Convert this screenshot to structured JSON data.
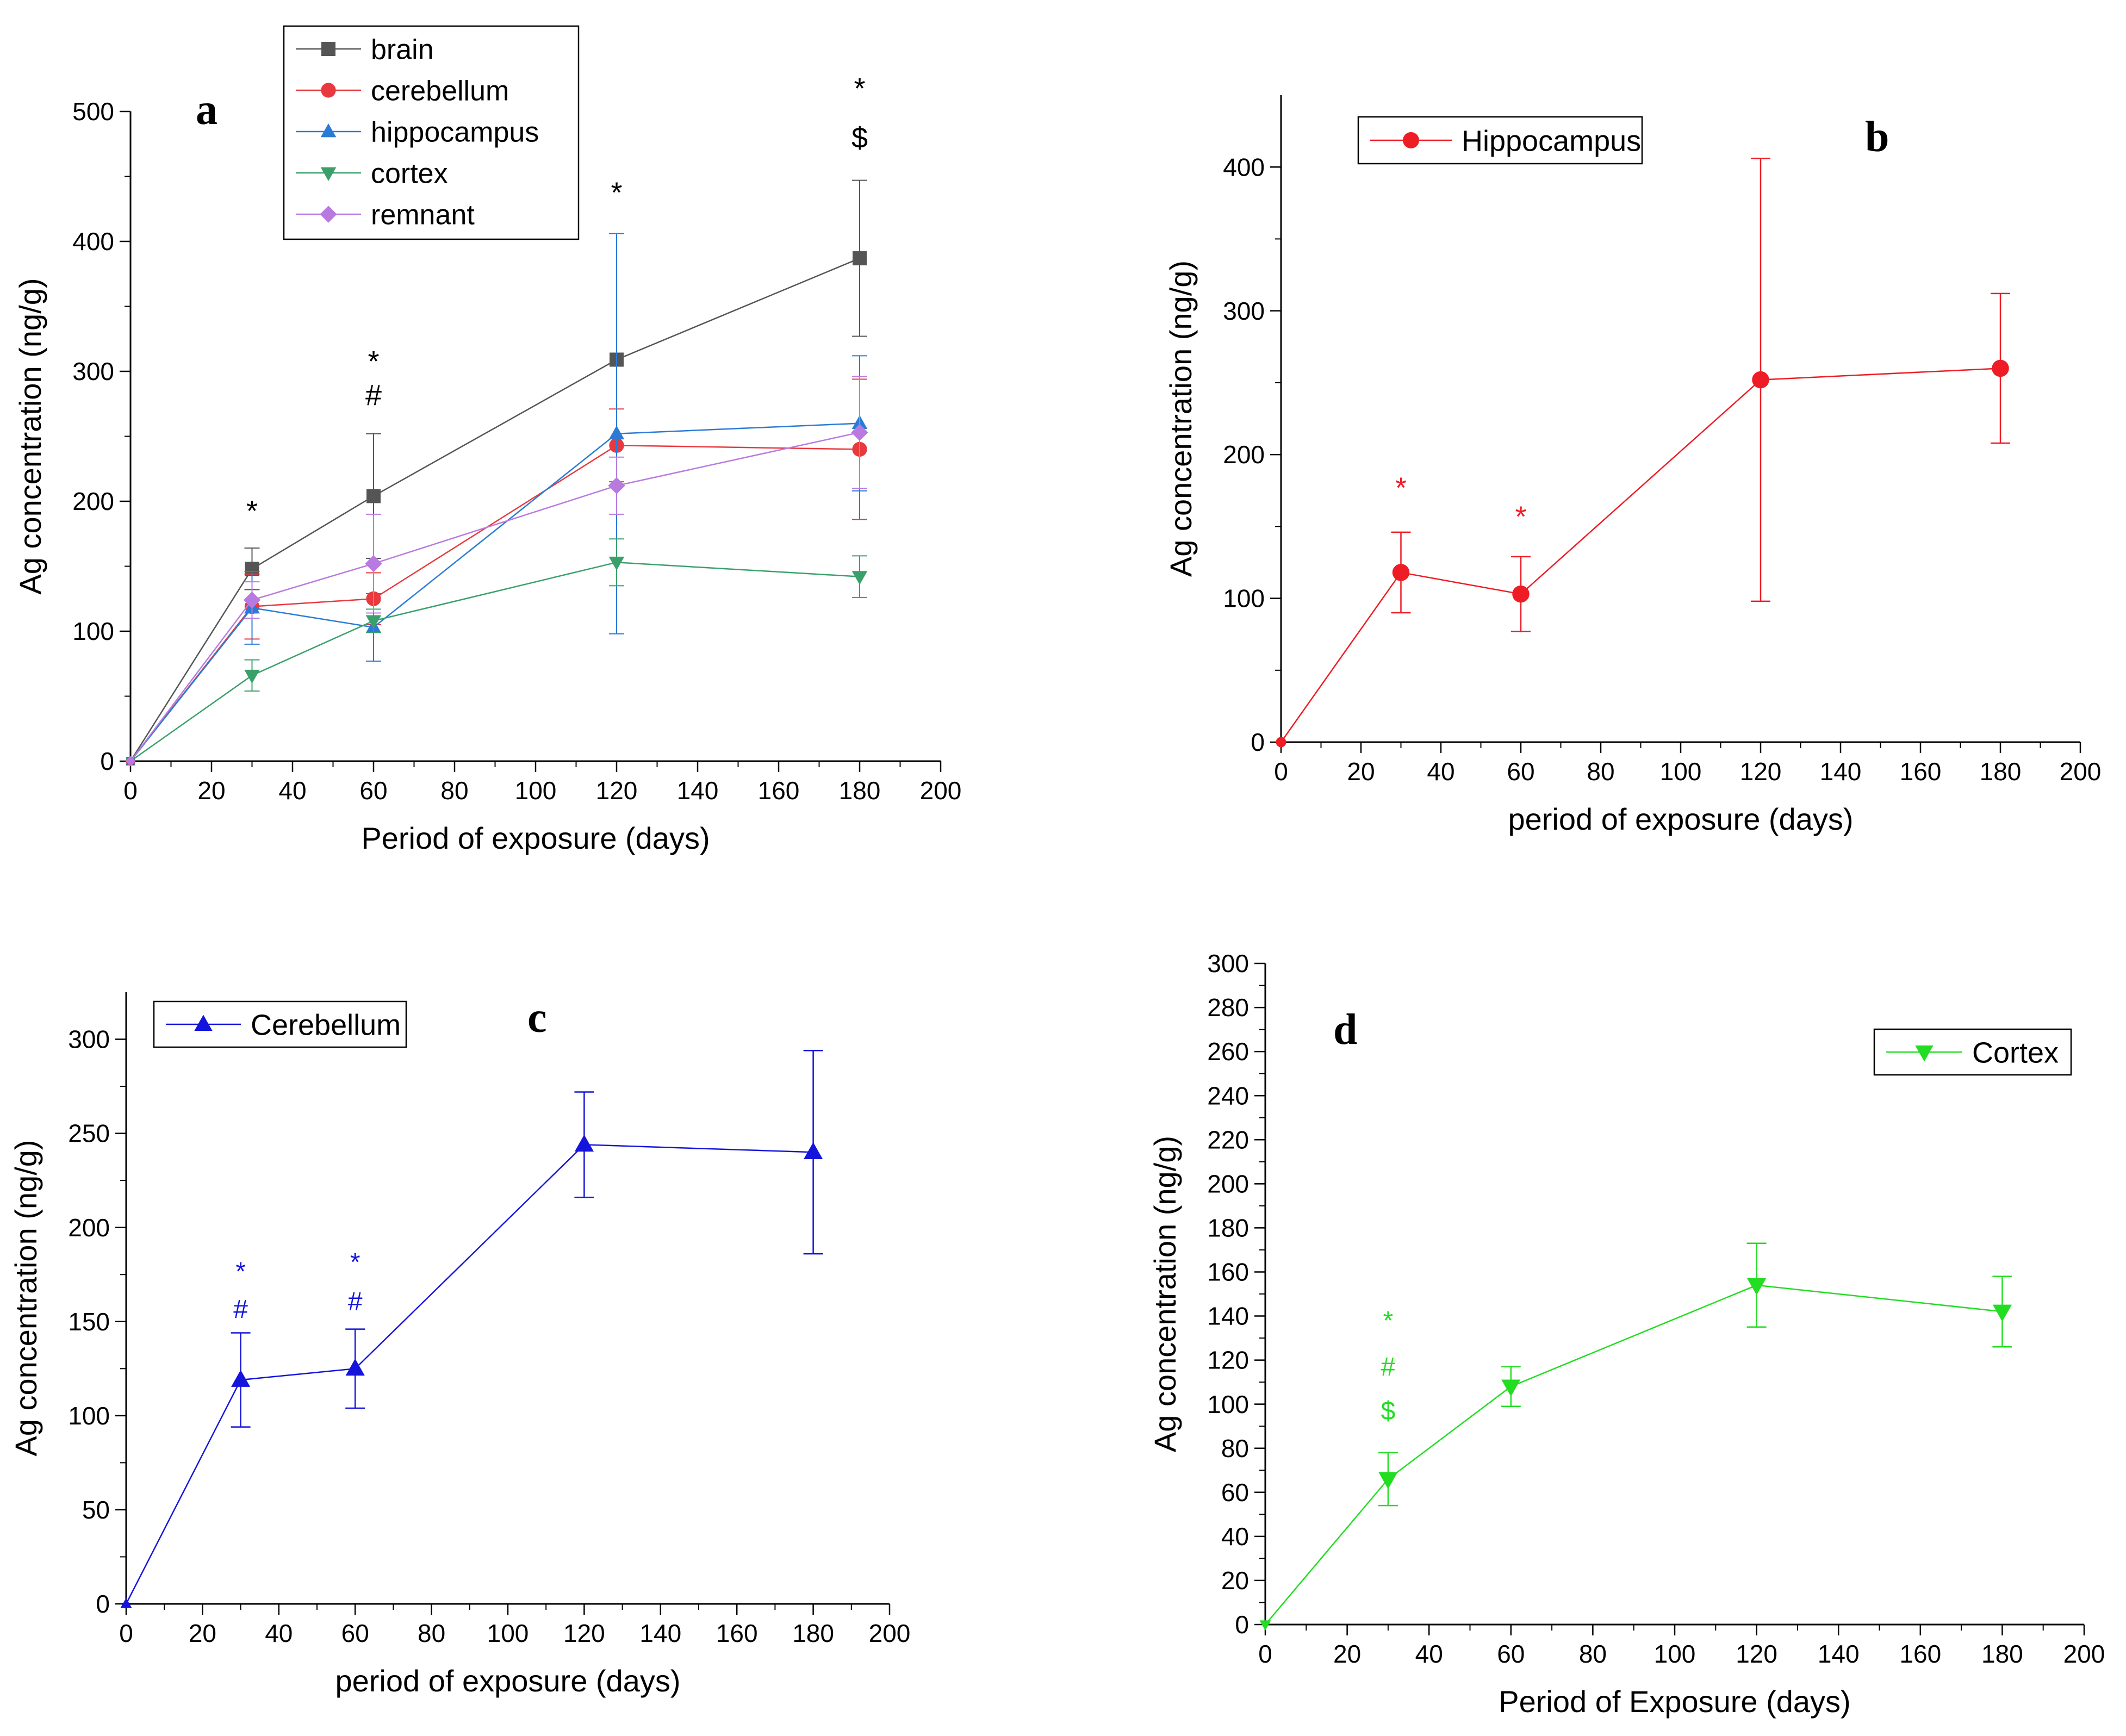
{
  "figure": {
    "panels": [
      "a",
      "b",
      "c",
      "d"
    ]
  },
  "chart_data": [
    {
      "id": "a",
      "type": "line",
      "panel_label": "a",
      "xlabel": "Period of exposure (days)",
      "ylabel": "Ag concentration (ng/g)",
      "xlim": [
        0,
        200
      ],
      "ylim": [
        0,
        500
      ],
      "xticks": [
        0,
        20,
        40,
        60,
        80,
        100,
        120,
        140,
        160,
        180,
        200
      ],
      "yticks": [
        0,
        100,
        200,
        300,
        400,
        500
      ],
      "legend_position": "top-center",
      "x": [
        0,
        30,
        60,
        120,
        180
      ],
      "series": [
        {
          "name": "brain",
          "color": "#555555",
          "marker": "square",
          "values": [
            0,
            148,
            204,
            309,
            387
          ],
          "errors": [
            0,
            16,
            48,
            0,
            60
          ]
        },
        {
          "name": "cerebellum",
          "color": "#e8393f",
          "marker": "circle",
          "values": [
            0,
            119,
            125,
            243,
            240
          ],
          "errors": [
            0,
            25,
            20,
            28,
            54
          ]
        },
        {
          "name": "hippocampus",
          "color": "#2b7bd6",
          "marker": "triangle-up",
          "values": [
            0,
            118,
            103,
            252,
            260
          ],
          "errors": [
            0,
            28,
            26,
            154,
            52
          ]
        },
        {
          "name": "cortex",
          "color": "#3aa06a",
          "marker": "triangle-down",
          "values": [
            0,
            66,
            108,
            153,
            142
          ],
          "errors": [
            0,
            12,
            9,
            18,
            16
          ]
        },
        {
          "name": "remnant",
          "color": "#b87ae0",
          "marker": "diamond",
          "values": [
            0,
            124,
            152,
            212,
            253
          ],
          "errors": [
            0,
            14,
            38,
            22,
            43
          ]
        }
      ],
      "annotations": [
        {
          "x": 30,
          "y": 185,
          "text": "*",
          "color": "#000000"
        },
        {
          "x": 60,
          "y": 300,
          "text": "*",
          "color": "#000000"
        },
        {
          "x": 60,
          "y": 274,
          "text": "#",
          "color": "#000000"
        },
        {
          "x": 120,
          "y": 430,
          "text": "*",
          "color": "#000000"
        },
        {
          "x": 180,
          "y": 510,
          "text": "*",
          "color": "#000000"
        },
        {
          "x": 180,
          "y": 472,
          "text": "$",
          "color": "#000000"
        }
      ]
    },
    {
      "id": "b",
      "type": "line",
      "panel_label": "b",
      "xlabel": "period of exposure (days)",
      "ylabel": "Ag concentration (ng/g)",
      "xlim": [
        0,
        200
      ],
      "ylim": [
        0,
        450
      ],
      "xticks": [
        0,
        20,
        40,
        60,
        80,
        100,
        120,
        140,
        160,
        180,
        200
      ],
      "yticks": [
        0,
        100,
        200,
        300,
        400
      ],
      "legend_position": "top-left",
      "x": [
        0,
        30,
        60,
        120,
        180
      ],
      "series": [
        {
          "name": "Hippocampus",
          "color": "#ee1c24",
          "marker": "circle",
          "values": [
            0,
            118,
            103,
            252,
            260
          ],
          "errors": [
            0,
            28,
            26,
            154,
            52
          ]
        }
      ],
      "annotations": [
        {
          "x": 30,
          "y": 170,
          "text": "*",
          "color": "#ee1c24"
        },
        {
          "x": 60,
          "y": 150,
          "text": "*",
          "color": "#ee1c24"
        }
      ]
    },
    {
      "id": "c",
      "type": "line",
      "panel_label": "c",
      "xlabel": "period of exposure (days)",
      "ylabel": "Ag concentration (ng/g)",
      "xlim": [
        0,
        200
      ],
      "ylim": [
        0,
        325
      ],
      "xticks": [
        0,
        20,
        40,
        60,
        80,
        100,
        120,
        140,
        160,
        180,
        200
      ],
      "yticks": [
        0,
        50,
        100,
        150,
        200,
        250,
        300
      ],
      "legend_position": "top-left",
      "x": [
        0,
        30,
        60,
        120,
        180
      ],
      "series": [
        {
          "name": "Cerebellum",
          "color": "#1414dc",
          "marker": "triangle-up",
          "values": [
            0,
            119,
            125,
            244,
            240
          ],
          "errors": [
            0,
            25,
            21,
            28,
            54
          ]
        }
      ],
      "annotations": [
        {
          "x": 30,
          "y": 172,
          "text": "*",
          "color": "#1414dc"
        },
        {
          "x": 30,
          "y": 152,
          "text": "#",
          "color": "#1414dc"
        },
        {
          "x": 60,
          "y": 177,
          "text": "*",
          "color": "#1414dc"
        },
        {
          "x": 60,
          "y": 156,
          "text": "#",
          "color": "#1414dc"
        }
      ]
    },
    {
      "id": "d",
      "type": "line",
      "panel_label": "d",
      "xlabel": "Period of Exposure (days)",
      "ylabel": "Ag concentration (ng/g)",
      "xlim": [
        0,
        200
      ],
      "ylim": [
        0,
        300
      ],
      "xticks": [
        0,
        20,
        40,
        60,
        80,
        100,
        120,
        140,
        160,
        180,
        200
      ],
      "yticks": [
        0,
        20,
        40,
        60,
        80,
        100,
        120,
        140,
        160,
        180,
        200,
        220,
        240,
        260,
        280,
        300
      ],
      "legend_position": "top-right",
      "x": [
        0,
        30,
        60,
        120,
        180
      ],
      "series": [
        {
          "name": "Cortex",
          "color": "#22dd22",
          "marker": "triangle-down",
          "values": [
            0,
            66,
            108,
            154,
            142
          ],
          "errors": [
            0,
            12,
            9,
            19,
            16
          ]
        }
      ],
      "annotations": [
        {
          "x": 30,
          "y": 134,
          "text": "*",
          "color": "#22dd22"
        },
        {
          "x": 30,
          "y": 113,
          "text": "#",
          "color": "#22dd22"
        },
        {
          "x": 30,
          "y": 93,
          "text": "$",
          "color": "#22dd22"
        }
      ]
    }
  ]
}
